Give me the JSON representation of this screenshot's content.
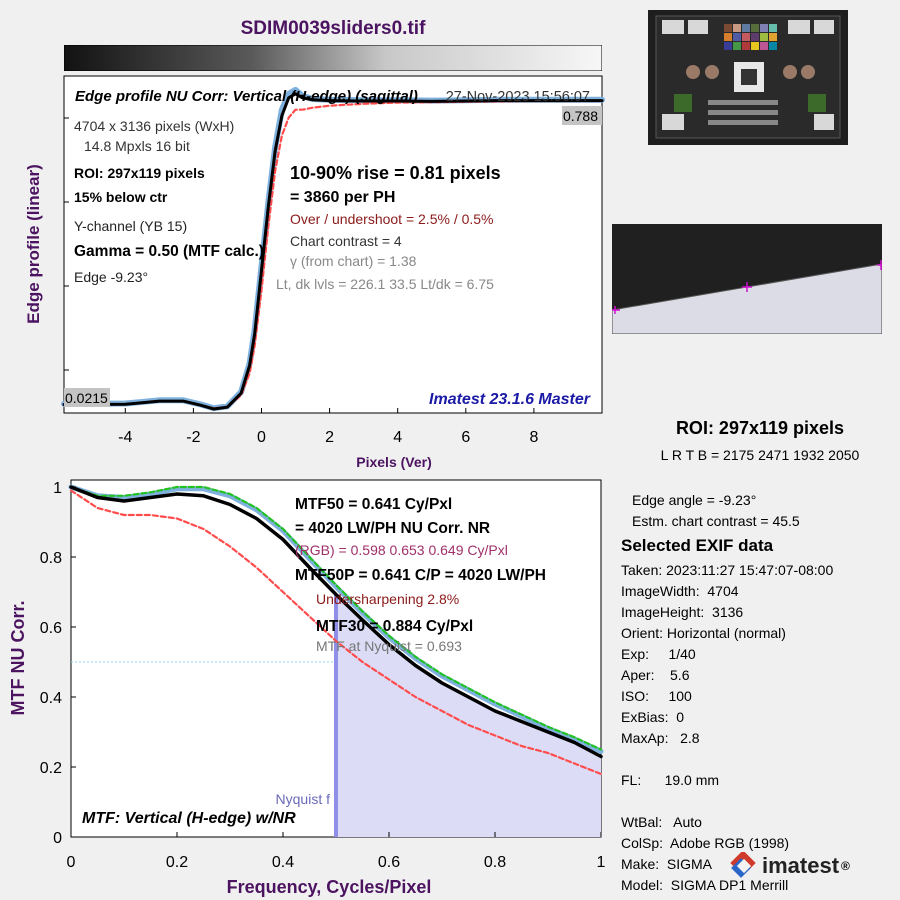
{
  "header": {
    "title": "SDIM0039sliders0.tif"
  },
  "edge_panel": {
    "heading": "Edge profile  NU Corr: Vertical (H-edge) (sagittal)",
    "timestamp": "27-Nov-2023 15:56:07",
    "left_info": [
      "4704 x 3136 pixels (WxH)",
      "14.8 Mpxls   16 bit",
      "ROI:  297x119 pixels",
      "15% below ctr",
      "Y-channel  (YB 15)",
      "Gamma = 0.50 (MTF calc.)",
      "Edge  -9.23°"
    ],
    "rise": "10-90% rise = 0.81 pixels",
    "per_ph": "=   3860 per PH",
    "overshoot": "Over / undershoot =  2.5% /  0.5%",
    "chart_contrast": "Chart contrast = 4",
    "gamma_chart": "γ (from chart) =  1.38",
    "levels": "Lt, dk lvls = 226.1  33.5  Lt/dk = 6.75",
    "right_value": "0.788",
    "left_value": "0.0215",
    "version": "Imatest 23.1.6 Master",
    "colors": {
      "black": "#000000",
      "blue": "#7fb1de",
      "red": "#ff4d4d",
      "title": "#4b1360"
    }
  },
  "mtf_panel": {
    "mtf50": "MTF50 = 0.641 Cy/Pxl",
    "mtf50_lw": "= 4020 LW/PH  NU Corr.  NR",
    "rgb": "(RGB) = 0.598  0.653  0.649 Cy/Pxl",
    "mtf50p": "MTF50P = 0.641 C/P = 4020 LW/PH",
    "undersharpening": "Undersharpening  2.8%",
    "mtf30": "MTF30 = 0.884 Cy/Pxl",
    "mtf_nyquist": "MTF at Nyquist = 0.693",
    "nyquist_label": "Nyquist f",
    "footer": "MTF: Vertical (H-edge) w/NR",
    "colors": {
      "fill": "#dcdcf6",
      "nyquist": "#8f8fe8",
      "green": "#22c222"
    }
  },
  "roi_panel": {
    "title": "ROI:  297x119 pixels",
    "bounds": "L R  T B = 2175 2471  1932 2050"
  },
  "info": {
    "edge_angle": "Edge angle = -9.23°",
    "chart_contrast": "Estm. chart contrast = 45.5",
    "exif_title": "Selected EXIF data",
    "exif": [
      "Taken: 2023:11:27 15:47:07-08:00",
      "ImageWidth:  4704",
      "ImageHeight:  3136",
      "Orient: Horizontal (normal)",
      "Exp:     1/40",
      "Aper:    5.6",
      "ISO:     100",
      "ExBias:  0",
      "MaxAp:   2.8",
      "",
      "FL:      19.0 mm",
      "",
      "WtBal:   Auto",
      "ColSp:  Adobe RGB (1998)",
      "Make:  SIGMA",
      "Model:  SIGMA DP1 Merrill"
    ]
  },
  "logo": {
    "text": "imatest",
    "mark": "®"
  },
  "chart_data": [
    {
      "type": "line",
      "xlabel": "Pixels (Ver)",
      "ylabel": "Edge profile (linear)",
      "xlim": [
        -5.8,
        10
      ],
      "ylim": [
        0,
        0.85
      ],
      "xticks": [
        "-4",
        "-2",
        "0",
        "2",
        "4",
        "6",
        "8"
      ],
      "xtick_values": [
        -4,
        -2,
        0,
        2,
        4,
        6,
        8
      ],
      "grid": false,
      "series": [
        {
          "color": "#000000",
          "x": [
            -5.8,
            -4,
            -3,
            -2.3,
            -1.8,
            -1.4,
            -1,
            -0.6,
            -0.35,
            -0.2,
            0,
            0.2,
            0.4,
            0.6,
            0.8,
            1,
            1.2,
            1.5,
            2,
            3,
            4,
            5,
            6,
            7,
            8,
            9,
            10
          ],
          "y": [
            0.0215,
            0.022,
            0.03,
            0.03,
            0.02,
            0.01,
            0.015,
            0.05,
            0.12,
            0.2,
            0.36,
            0.52,
            0.66,
            0.75,
            0.795,
            0.805,
            0.795,
            0.79,
            0.788,
            0.787,
            0.787,
            0.786,
            0.787,
            0.788,
            0.788,
            0.788,
            0.788
          ]
        },
        {
          "color": "#7fb1de",
          "x": [
            -5.8,
            -4,
            -3,
            -2.3,
            -1.8,
            -1.4,
            -1,
            -0.6,
            -0.35,
            -0.2,
            0,
            0.2,
            0.4,
            0.6,
            0.8,
            1,
            1.2,
            1.5,
            2,
            3,
            4,
            5,
            6,
            7,
            8,
            9,
            10
          ],
          "y": [
            0.023,
            0.024,
            0.032,
            0.032,
            0.022,
            0.012,
            0.017,
            0.053,
            0.125,
            0.21,
            0.37,
            0.53,
            0.67,
            0.765,
            0.805,
            0.815,
            0.8,
            0.792,
            0.79,
            0.789,
            0.789,
            0.788,
            0.789,
            0.79,
            0.79,
            0.79,
            0.79
          ]
        },
        {
          "color": "#ff4d4d",
          "dashed": true,
          "x": [
            -5.8,
            -4,
            -3,
            -2.3,
            -1.8,
            -1.4,
            -1,
            -0.6,
            -0.35,
            -0.2,
            0,
            0.2,
            0.4,
            0.6,
            0.8,
            1,
            1.2,
            1.5,
            2,
            3,
            4,
            5,
            6,
            7,
            8,
            9,
            10
          ],
          "y": [
            0.0215,
            0.022,
            0.03,
            0.03,
            0.02,
            0.012,
            0.015,
            0.045,
            0.1,
            0.17,
            0.31,
            0.47,
            0.61,
            0.7,
            0.745,
            0.765,
            0.765,
            0.77,
            0.775,
            0.78,
            0.783,
            0.784,
            0.785,
            0.786,
            0.787,
            0.787,
            0.788
          ]
        }
      ]
    },
    {
      "type": "area",
      "xlabel": "Frequency, Cycles/Pixel",
      "ylabel": "MTF  NU Corr.",
      "xlim": [
        0,
        1
      ],
      "ylim": [
        0,
        1.02
      ],
      "xticks": [
        "0",
        "0.2",
        "0.4",
        "0.6",
        "0.8",
        "1"
      ],
      "xtick_values": [
        0,
        0.2,
        0.4,
        0.6,
        0.8,
        1
      ],
      "yticks": [
        "0",
        "0.2",
        "0.4",
        "0.6",
        "0.8",
        "1"
      ],
      "ytick_values": [
        0,
        0.2,
        0.4,
        0.6,
        0.8,
        1
      ],
      "nyquist": 0.5,
      "reference_y": 0.5,
      "grid": false,
      "series": [
        {
          "color": "#000000",
          "x": [
            0,
            0.05,
            0.1,
            0.15,
            0.2,
            0.25,
            0.3,
            0.35,
            0.4,
            0.45,
            0.5,
            0.55,
            0.6,
            0.65,
            0.7,
            0.75,
            0.8,
            0.85,
            0.9,
            0.95,
            1
          ],
          "y": [
            1,
            0.97,
            0.96,
            0.97,
            0.98,
            0.975,
            0.95,
            0.91,
            0.85,
            0.77,
            0.693,
            0.62,
            0.55,
            0.49,
            0.44,
            0.4,
            0.36,
            0.33,
            0.3,
            0.27,
            0.23
          ]
        },
        {
          "color": "#7fb1de",
          "x": [
            0,
            0.05,
            0.1,
            0.15,
            0.2,
            0.25,
            0.3,
            0.35,
            0.4,
            0.45,
            0.5,
            0.55,
            0.6,
            0.65,
            0.7,
            0.75,
            0.8,
            0.85,
            0.9,
            0.95,
            1
          ],
          "y": [
            1,
            0.975,
            0.97,
            0.98,
            0.995,
            0.995,
            0.975,
            0.935,
            0.875,
            0.795,
            0.715,
            0.64,
            0.57,
            0.51,
            0.46,
            0.42,
            0.38,
            0.345,
            0.31,
            0.28,
            0.245
          ]
        },
        {
          "color": "#22c222",
          "dashed": true,
          "x": [
            0,
            0.05,
            0.1,
            0.15,
            0.2,
            0.25,
            0.3,
            0.35,
            0.4,
            0.45,
            0.5,
            0.55,
            0.6,
            0.65,
            0.7,
            0.75,
            0.8,
            0.85,
            0.9,
            0.95,
            1
          ],
          "y": [
            1,
            0.975,
            0.975,
            0.985,
            1,
            1,
            0.98,
            0.94,
            0.88,
            0.8,
            0.72,
            0.645,
            0.575,
            0.515,
            0.465,
            0.425,
            0.385,
            0.35,
            0.315,
            0.285,
            0.25
          ]
        },
        {
          "color": "#ff4d4d",
          "dashed": true,
          "x": [
            0,
            0.05,
            0.1,
            0.15,
            0.2,
            0.25,
            0.3,
            0.35,
            0.4,
            0.45,
            0.5,
            0.55,
            0.6,
            0.65,
            0.7,
            0.75,
            0.8,
            0.85,
            0.9,
            0.95,
            1
          ],
          "y": [
            0.99,
            0.94,
            0.92,
            0.92,
            0.91,
            0.88,
            0.83,
            0.77,
            0.7,
            0.63,
            0.56,
            0.5,
            0.45,
            0.4,
            0.36,
            0.32,
            0.29,
            0.26,
            0.24,
            0.21,
            0.18
          ]
        }
      ]
    }
  ]
}
